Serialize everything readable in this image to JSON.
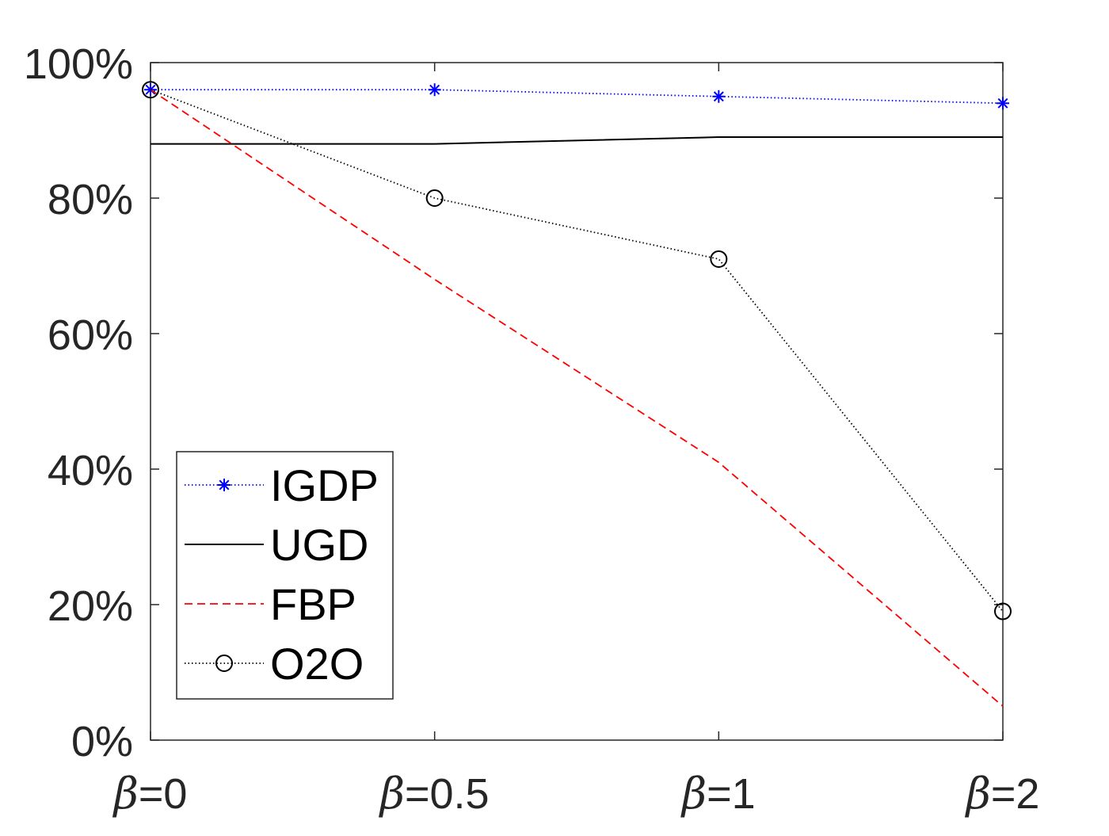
{
  "chart_data": {
    "type": "line",
    "title": "",
    "xlabel": "",
    "ylabel": "",
    "categories": [
      {
        "symbol": "β",
        "value": "=0"
      },
      {
        "symbol": "β",
        "value": "=0.5"
      },
      {
        "symbol": "β",
        "value": "=1"
      },
      {
        "symbol": "β",
        "value": "=2"
      }
    ],
    "ylim": [
      0,
      100
    ],
    "yticks": [
      0,
      20,
      40,
      60,
      80,
      100
    ],
    "ytick_labels": [
      "0%",
      "20%",
      "40%",
      "60%",
      "80%",
      "100%"
    ],
    "grid": false,
    "legend_position": "bottom-left",
    "series": [
      {
        "name": "IGDP",
        "values": [
          96,
          96,
          95,
          94
        ],
        "color": "#0000ff",
        "line_style": "dotted",
        "marker": "asterisk"
      },
      {
        "name": "UGD",
        "values": [
          88,
          88,
          89,
          89
        ],
        "color": "#000000",
        "line_style": "solid",
        "marker": "none"
      },
      {
        "name": "FBP",
        "values": [
          96,
          68,
          41,
          5
        ],
        "color": "#ff0000",
        "line_style": "dashed",
        "marker": "none"
      },
      {
        "name": "O2O",
        "values": [
          96,
          80,
          71,
          19
        ],
        "color": "#000000",
        "line_style": "dotted",
        "marker": "circle"
      }
    ]
  }
}
